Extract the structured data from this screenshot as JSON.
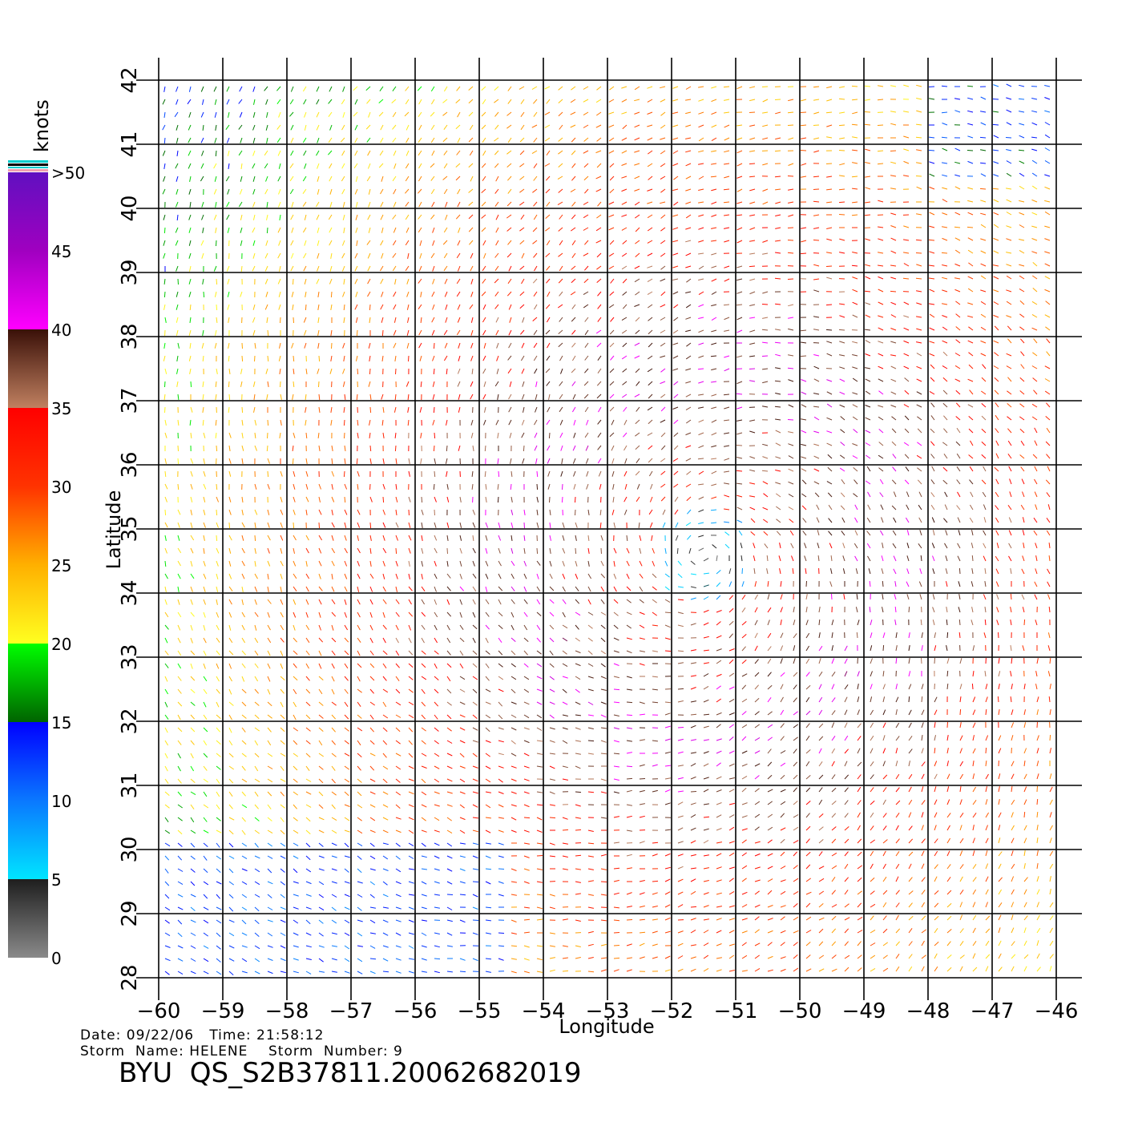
{
  "chart_data": {
    "type": "scatter",
    "title": "",
    "xlabel": "Longitude",
    "ylabel": "Latitude",
    "xlim": [
      -60,
      -46
    ],
    "ylim": [
      28,
      42
    ],
    "x_ticks": [
      -60,
      -59,
      -58,
      -57,
      -56,
      -55,
      -54,
      -53,
      -52,
      -51,
      -50,
      -49,
      -48,
      -47,
      -46
    ],
    "y_ticks": [
      28,
      29,
      30,
      31,
      32,
      33,
      34,
      35,
      36,
      37,
      38,
      39,
      40,
      41,
      42
    ],
    "grid": true,
    "storm_center": {
      "lon": -51.5,
      "lat": 34.6
    },
    "colorbar": {
      "unit_label": "knots",
      "ticks": [
        {
          "label": "0",
          "value": 0
        },
        {
          "label": "5",
          "value": 5
        },
        {
          "label": "10",
          "value": 10
        },
        {
          "label": "15",
          "value": 15
        },
        {
          "label": "20",
          "value": 20
        },
        {
          "label": "25",
          "value": 25
        },
        {
          "label": "30",
          "value": 30
        },
        {
          "label": "35",
          "value": 35
        },
        {
          "label": "40",
          "value": 40
        },
        {
          "label": "45",
          "value": 45
        },
        {
          "label": ">50",
          "value": 50
        }
      ],
      "stops": [
        {
          "value": 0,
          "color": "#8a8a8a"
        },
        {
          "value": 5,
          "color": "#1e1e1e"
        },
        {
          "value": 5.01,
          "color": "#00e5ff"
        },
        {
          "value": 10,
          "color": "#0a78ff"
        },
        {
          "value": 15,
          "color": "#0000ff"
        },
        {
          "value": 15.01,
          "color": "#006400"
        },
        {
          "value": 20,
          "color": "#00ff00"
        },
        {
          "value": 20.01,
          "color": "#ffff20"
        },
        {
          "value": 25,
          "color": "#ffb000"
        },
        {
          "value": 30,
          "color": "#ff3300"
        },
        {
          "value": 35,
          "color": "#ff0000"
        },
        {
          "value": 35.01,
          "color": "#c08060"
        },
        {
          "value": 40,
          "color": "#3a1008"
        },
        {
          "value": 40.01,
          "color": "#ff00ff"
        },
        {
          "value": 45,
          "color": "#a000c0"
        },
        {
          "value": 50,
          "color": "#6010c0"
        }
      ]
    }
  },
  "footer": {
    "date_line": "Date: 09/22/06   Time: 21:58:12",
    "storm_line": "Storm  Name: HELENE    Storm  Number: 9",
    "product_id": "BYU  QS_S2B37811.20062682019"
  }
}
